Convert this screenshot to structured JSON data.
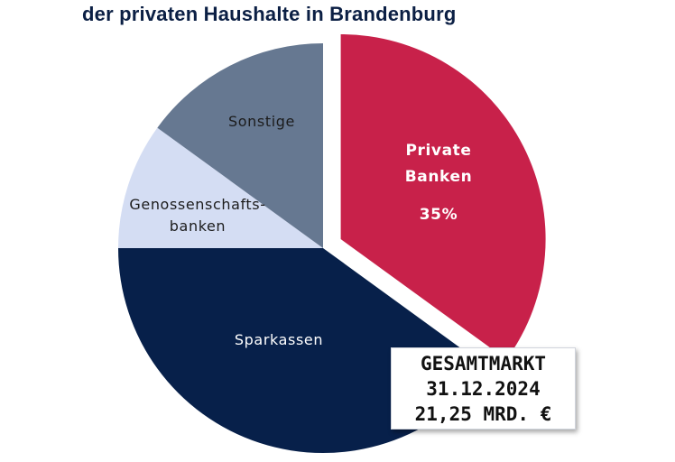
{
  "chart_data": {
    "type": "pie",
    "title": "der privaten Haushalte in Brandenburg",
    "slices": [
      {
        "label_lines": [
          "Private",
          "Banken"
        ],
        "value_label": "35%",
        "value": 35,
        "color": "#c8214a",
        "label_color": "#ffffff",
        "exploded": true
      },
      {
        "label_lines": [
          "Sparkassen"
        ],
        "value_label": "",
        "value": 40,
        "color": "#07204a",
        "label_color": "#ffffff",
        "exploded": false
      },
      {
        "label_lines": [
          "Genossenschafts-",
          "banken"
        ],
        "value_label": "",
        "value": 10,
        "color": "#d4ddf3",
        "label_color": "#1c1c1c",
        "exploded": false
      },
      {
        "label_lines": [
          "Sonstige"
        ],
        "value_label": "",
        "value": 15,
        "color": "#667891",
        "label_color": "#1c1c1c",
        "exploded": false
      }
    ]
  },
  "total_box": {
    "line1": "GESAMTMARKT",
    "line2": "31.12.2024",
    "line3": "21,25 MRD. €"
  }
}
